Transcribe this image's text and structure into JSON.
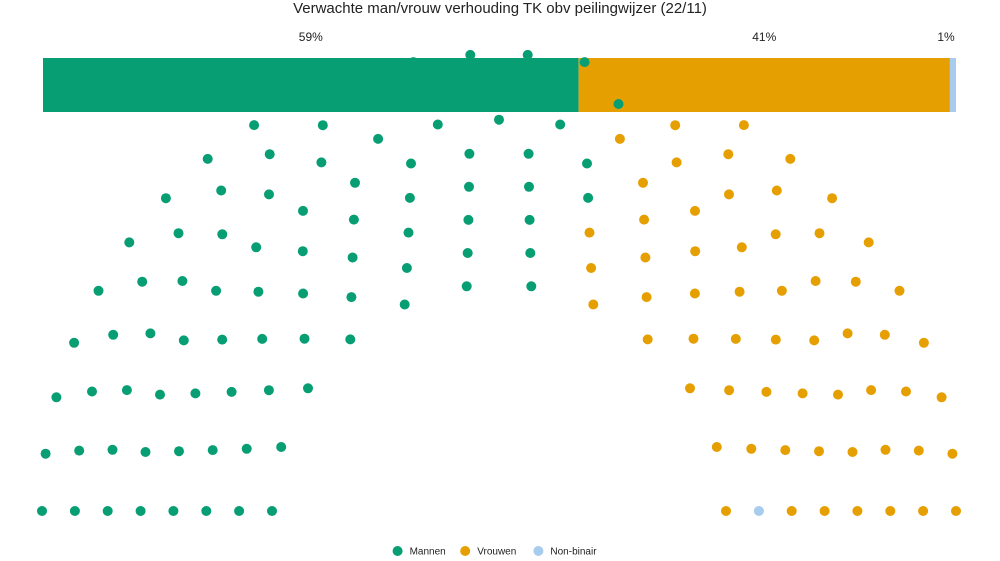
{
  "chart_data": {
    "type": "parliament",
    "title": "Verwachte man/vrouw verhouding TK obv peilingwijzer (22/11)",
    "total_seats": 150,
    "categories": [
      {
        "name": "Mannen",
        "seats": 88,
        "percent_label": "59%",
        "color": "#079E73"
      },
      {
        "name": "Vrouwen",
        "seats": 61,
        "percent_label": "41%",
        "color": "#E69F01"
      },
      {
        "name": "Non-binair",
        "seats": 1,
        "percent_label": "1%",
        "color": "#A8CCEE"
      }
    ],
    "legend_position": "bottom-center"
  }
}
